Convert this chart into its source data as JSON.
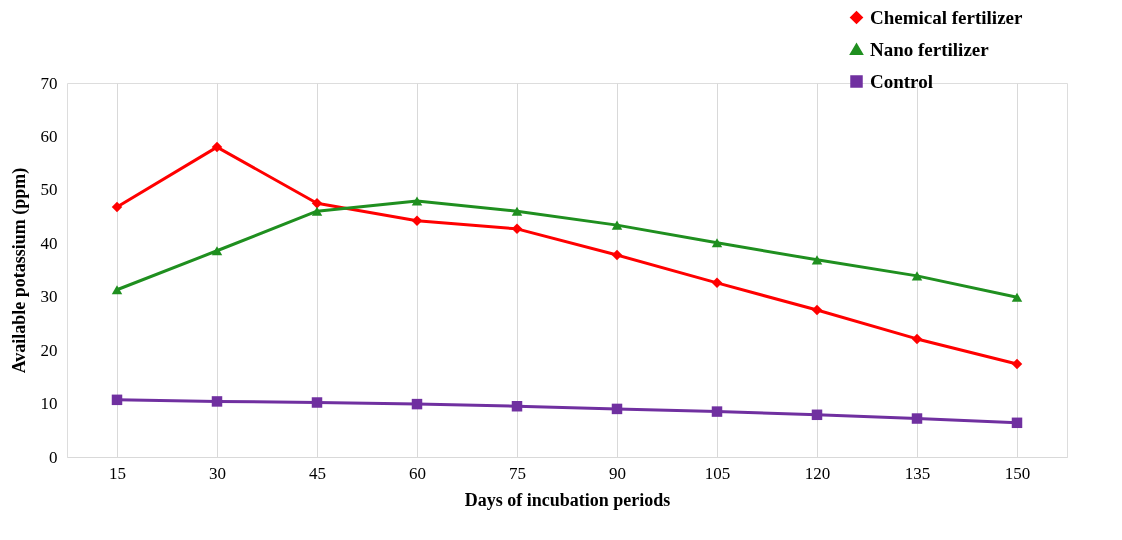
{
  "chart_data": {
    "type": "line",
    "xlabel": "Days of incubation periods",
    "ylabel": "Available potassium (ppm)",
    "categories": [
      "15",
      "30",
      "45",
      "60",
      "75",
      "90",
      "105",
      "120",
      "135",
      "150"
    ],
    "series": [
      {
        "name": "Chemical fertilizer",
        "color": "#ff0000",
        "marker": "diamond",
        "values": [
          46.8,
          58.0,
          47.5,
          44.2,
          42.7,
          37.8,
          32.6,
          27.5,
          22.1,
          17.4
        ]
      },
      {
        "name": "Nano fertilizer",
        "color": "#1f8f1f",
        "marker": "triangle",
        "values": [
          31.3,
          38.6,
          46.0,
          47.9,
          46.0,
          43.4,
          40.1,
          36.9,
          33.9,
          29.9
        ]
      },
      {
        "name": "Control",
        "color": "#7030a0",
        "marker": "square",
        "values": [
          10.7,
          10.4,
          10.2,
          9.9,
          9.5,
          9.0,
          8.5,
          7.9,
          7.2,
          6.4
        ]
      }
    ],
    "ylim": [
      0,
      70
    ],
    "yticks": [
      0,
      10,
      20,
      30,
      40,
      50,
      60,
      70
    ],
    "grid": "x",
    "legend": "top right",
    "line_style": "solid"
  }
}
